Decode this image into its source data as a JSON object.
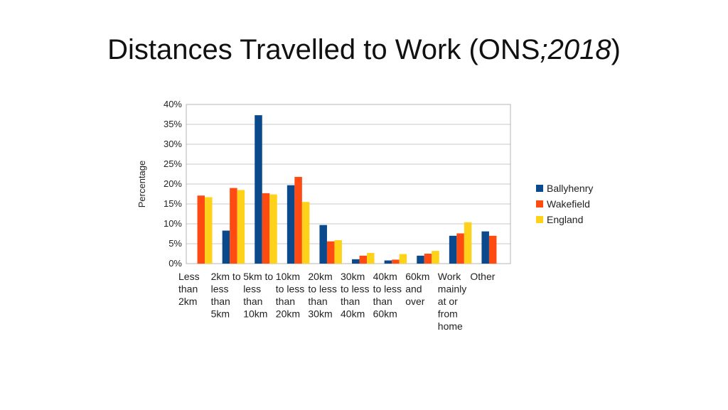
{
  "slide": {
    "title_main": "Distances Travelled to Work (ONS",
    "title_sep": ";",
    "title_year": "2018",
    "title_close": ")"
  },
  "chart_data": {
    "type": "bar",
    "title": "",
    "xlabel": "",
    "ylabel": "Percentage",
    "ylim": [
      0,
      40
    ],
    "yticks": [
      0,
      5,
      10,
      15,
      20,
      25,
      30,
      35,
      40
    ],
    "ytick_labels": [
      "0%",
      "5%",
      "10%",
      "15%",
      "20%",
      "25%",
      "30%",
      "35%",
      "40%"
    ],
    "grid": true,
    "legend_position": "right",
    "categories": [
      "Less than 2km",
      "2km to less than 5km",
      "5km to less than 10km",
      "10km to less than 20km",
      "20km to less than 30km",
      "30km to less than 40km",
      "40km to less than 60km",
      "60km and over",
      "Work mainly at or from home",
      "Other"
    ],
    "category_lines": [
      [
        "Less",
        "than",
        "2km"
      ],
      [
        "2km to",
        "less",
        "than",
        "5km"
      ],
      [
        "5km to",
        "less",
        "than",
        "10km"
      ],
      [
        "10km",
        "to less",
        "than",
        "20km"
      ],
      [
        "20km",
        "to less",
        "than",
        "30km"
      ],
      [
        "30km",
        "to less",
        "than",
        "40km"
      ],
      [
        "40km",
        "to less",
        "than",
        "60km"
      ],
      [
        "60km",
        "and",
        "over"
      ],
      [
        "Work",
        "mainly",
        "at or",
        "from",
        "home"
      ],
      [
        "Other"
      ]
    ],
    "series": [
      {
        "name": "Ballyhenry",
        "color": "#0a4a8c",
        "values": [
          0,
          8.3,
          37.3,
          19.7,
          9.7,
          1.1,
          0.8,
          2.0,
          7.0,
          8.1
        ]
      },
      {
        "name": "Wakefield",
        "color": "#ff4a12",
        "values": [
          17.1,
          19.0,
          17.7,
          21.8,
          5.6,
          2.0,
          1.0,
          2.5,
          7.6,
          7.0
        ]
      },
      {
        "name": "England",
        "color": "#ffd21a",
        "values": [
          16.7,
          18.5,
          17.4,
          15.5,
          5.9,
          2.7,
          2.4,
          3.2,
          10.4,
          0
        ]
      }
    ]
  }
}
